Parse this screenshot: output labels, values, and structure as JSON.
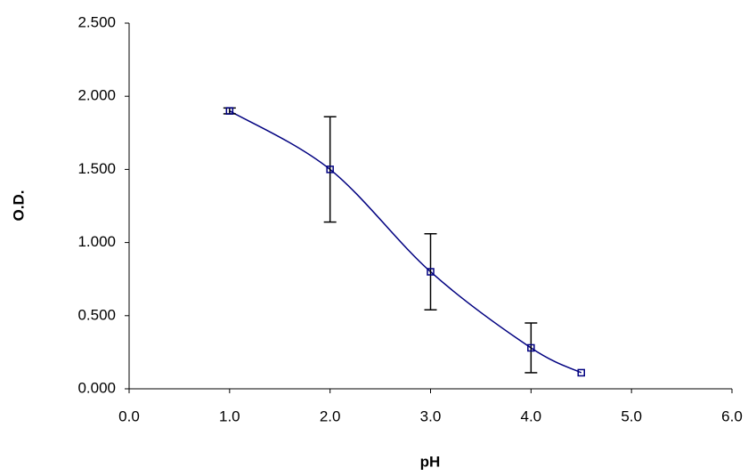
{
  "chart_data": {
    "type": "scatter",
    "xlabel": "pH",
    "ylabel": "O.D.",
    "series": [
      {
        "color": "#000080",
        "smooth": true,
        "x": [
          1.0,
          2.0,
          3.0,
          4.0,
          4.5
        ],
        "values": [
          1.9,
          1.5,
          0.8,
          0.28,
          0.11
        ],
        "errors": [
          0.02,
          0.36,
          0.26,
          0.17,
          null
        ]
      }
    ],
    "xlim": [
      0,
      6
    ],
    "xticks": [
      {
        "value": 0,
        "label": "0.0"
      },
      {
        "value": 1,
        "label": "1.0"
      },
      {
        "value": 2,
        "label": "2.0"
      },
      {
        "value": 3,
        "label": "3.0"
      },
      {
        "value": 4,
        "label": "4.0"
      },
      {
        "value": 5,
        "label": "5.0"
      },
      {
        "value": 6,
        "label": "6.0"
      }
    ],
    "ylim": [
      0,
      2.5
    ],
    "yticks": [
      {
        "value": 0,
        "label": "0.000"
      },
      {
        "value": 0.5,
        "label": "0.500"
      },
      {
        "value": 1,
        "label": "1.000"
      },
      {
        "value": 1.5,
        "label": "1.500"
      },
      {
        "value": 2,
        "label": "2.000"
      },
      {
        "value": 2.5,
        "label": "2.500"
      }
    ],
    "grid": false
  }
}
